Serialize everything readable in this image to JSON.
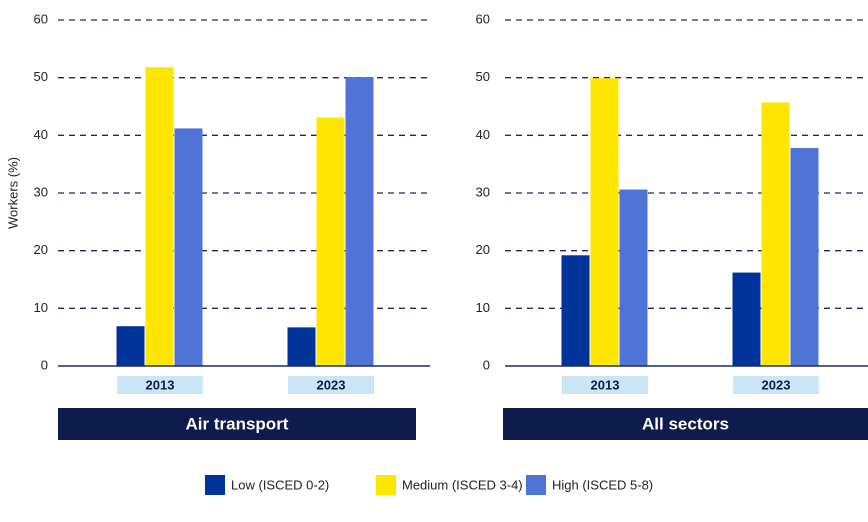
{
  "chart_data": {
    "type": "bar",
    "ylabel": "Workers (%)",
    "ylim": [
      0,
      60
    ],
    "yticks": [
      0,
      10,
      20,
      30,
      40,
      50,
      60
    ],
    "grid": true,
    "panels": [
      "Air transport",
      "All sectors"
    ],
    "categories": [
      "2013",
      "2023"
    ],
    "series": [
      {
        "name": "Low (ISCED 0-2)",
        "color": "#003399",
        "values": [
          [
            6.9,
            6.7
          ],
          [
            19.2,
            16.2
          ]
        ]
      },
      {
        "name": "Medium (ISCED 3-4)",
        "color": "#ffe600",
        "values": [
          [
            51.8,
            43.1
          ],
          [
            49.9,
            45.7
          ]
        ]
      },
      {
        "name": "High (ISCED 5-8)",
        "color": "#4f73d6",
        "values": [
          [
            41.2,
            50.1
          ],
          [
            30.6,
            37.8
          ]
        ]
      }
    ]
  }
}
